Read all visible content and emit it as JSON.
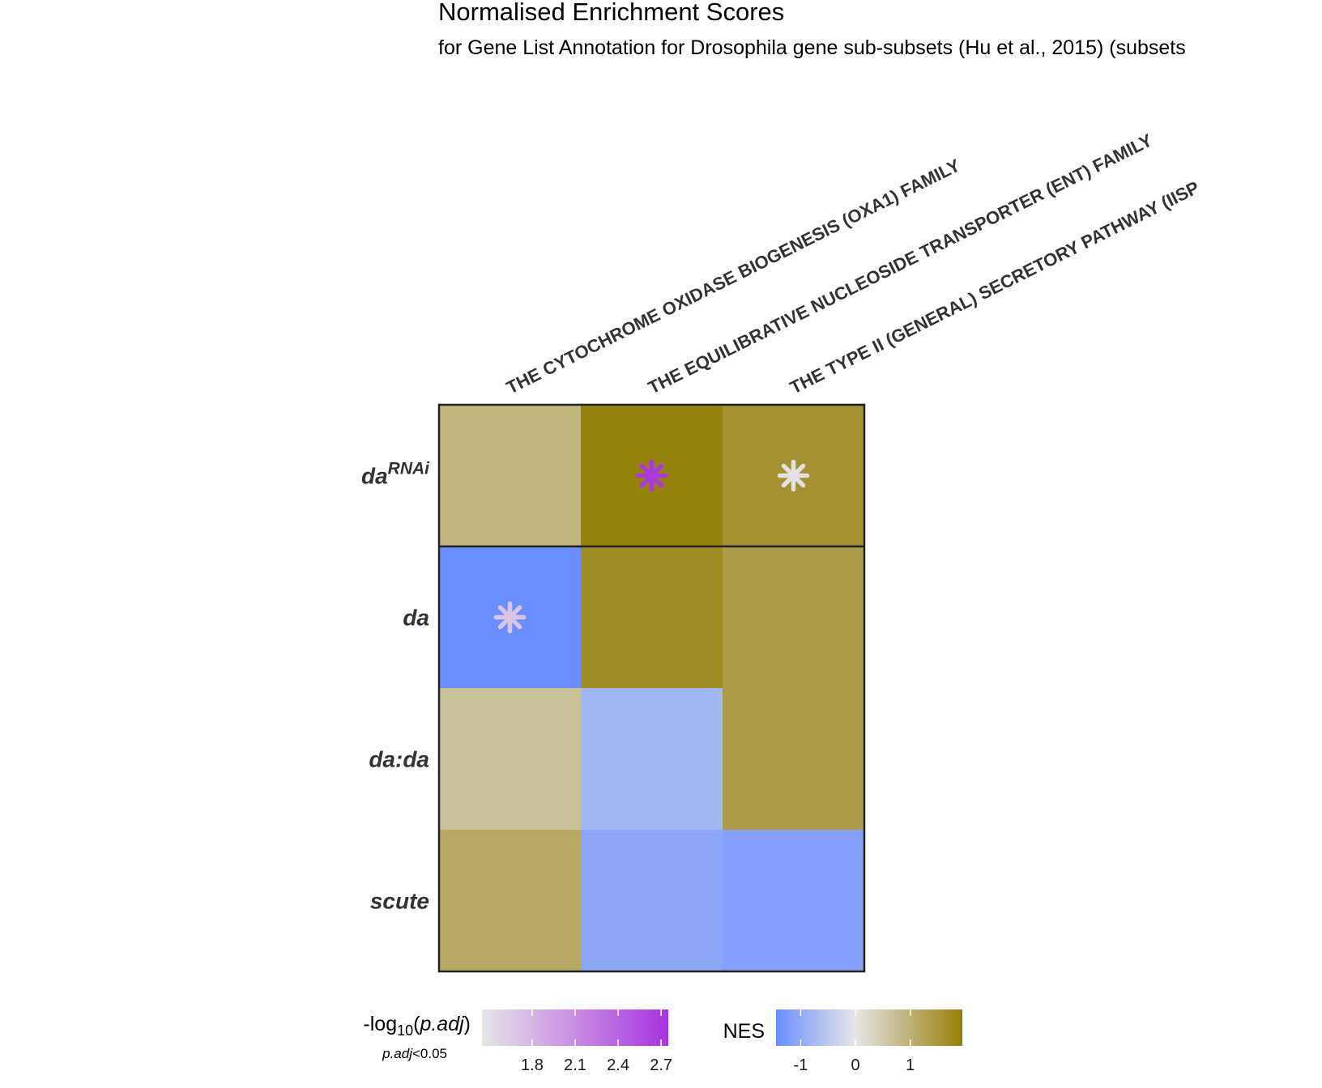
{
  "chart_data": {
    "type": "heatmap",
    "title": "Normalised Enrichment Scores",
    "subtitle": "for Gene List Annotation for Drosophila gene sub-subsets (Hu et al., 2015) (subsets",
    "columns": [
      "THE CYTOCHROME OXIDASE BIOGENESIS (OXA1) FAMILY",
      "THE EQUILIBRATIVE NUCLEOSIDE TRANSPORTER (ENT) FAMILY",
      "THE TYPE II (GENERAL) SECRETORY PATHWAY (IISP"
    ],
    "rows": [
      {
        "base": "da",
        "sup": "RNAi"
      },
      {
        "base": "da",
        "sup": ""
      },
      {
        "base": "da:da",
        "sup": ""
      },
      {
        "base": "scute",
        "sup": ""
      }
    ],
    "nes": [
      [
        0.9,
        1.9,
        1.6
      ],
      [
        -1.45,
        1.7,
        1.4
      ],
      [
        0.7,
        -0.8,
        1.4
      ],
      [
        1.15,
        -1.05,
        -1.15
      ]
    ],
    "significant": [
      [
        false,
        true,
        true
      ],
      [
        true,
        false,
        false
      ],
      [
        false,
        false,
        false
      ],
      [
        false,
        false,
        false
      ]
    ],
    "neg_log10_padj": [
      [
        null,
        2.7,
        1.5
      ],
      [
        1.7,
        null,
        null
      ],
      [
        null,
        null,
        null
      ],
      [
        null,
        null,
        null
      ]
    ],
    "legends": {
      "padj": {
        "title_prefix": "-log",
        "title_sub": "10",
        "title_var": "p.adj",
        "note_var": "p.adj",
        "note_rest": "<0.05",
        "ticks": [
          "1.8",
          "2.1",
          "2.4",
          "2.7"
        ],
        "tick_values": [
          1.8,
          2.1,
          2.4,
          2.7
        ],
        "range": [
          1.45,
          2.75
        ],
        "colors": [
          "#e6e6e6",
          "#a833e0"
        ]
      },
      "nes": {
        "title": "NES",
        "ticks": [
          "-1",
          "0",
          "1"
        ],
        "tick_values": [
          -1,
          0,
          1
        ],
        "range": [
          -1.45,
          1.95
        ],
        "colors": [
          "#6a8eff",
          "#e6e6e6",
          "#967f09"
        ]
      }
    }
  }
}
